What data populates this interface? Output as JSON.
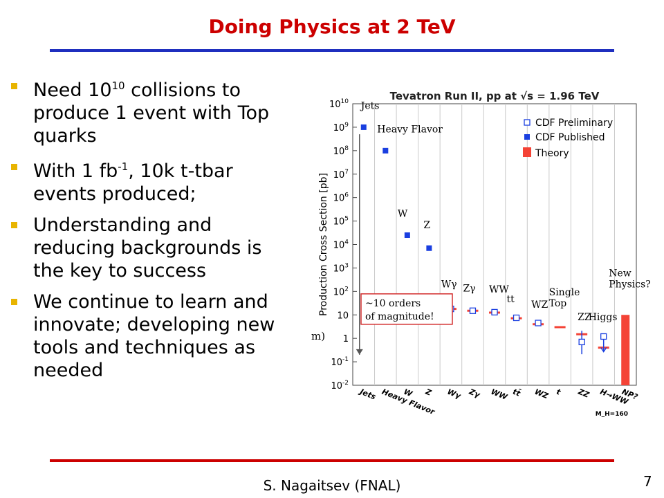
{
  "slide": {
    "title": "Doing Physics at 2 TeV",
    "footer": "S. Nagaitsev (FNAL)",
    "page_number": "7",
    "colors": {
      "title": "#cc0000",
      "rule_blue": "#1f2fbf",
      "rule_red": "#cc0000",
      "bullet": "#e8b400"
    },
    "bullets": [
      {
        "pre": "Need 10",
        "sup": "10",
        "post": " collisions to produce 1 event with Top quarks"
      },
      {
        "pre": "With 1 fb",
        "sup": "-1",
        "post": ", 10k t-tbar events produced;"
      },
      {
        "pre": "Understanding and reducing backgrounds is the key to success",
        "sup": "",
        "post": ""
      },
      {
        "pre": "We continue to learn and innovate;  developing new tools and techniques as needed",
        "sup": "",
        "post": ""
      }
    ]
  },
  "chart_data": {
    "type": "scatter",
    "title": "Tevatron Run II, pp at √s = 1.96 TeV",
    "ylabel": "Production Cross Section [pb]",
    "y_scale": "log",
    "ylim": [
      0.01,
      10000000000
    ],
    "y_tick_labels": [
      "10^-2",
      "10^-1",
      "1",
      "10",
      "10^2",
      "10^3",
      "10^4",
      "10^5",
      "10^6",
      "10^7",
      "10^8",
      "10^9",
      "10^10"
    ],
    "categories": [
      "Jets",
      "Heavy Flavor",
      "W",
      "Z",
      "Wγ",
      "Zγ",
      "WW",
      "tt̄",
      "WZ",
      "t",
      "ZZ",
      "H→WW",
      "NP?"
    ],
    "x_note": "M_H=160",
    "legend": [
      "CDF Preliminary",
      "CDF Published",
      "Theory"
    ],
    "legend_position": "top-right",
    "colors": {
      "published": "#1a3fe0",
      "preliminary": "#1a3fe0",
      "theory": "#f44336",
      "annotation": "#d32f2f"
    },
    "series": [
      {
        "name": "CDF Published",
        "values": [
          1000000000,
          100000000,
          25000,
          7000,
          null,
          null,
          null,
          null,
          null,
          null,
          null,
          null,
          null
        ]
      },
      {
        "name": "CDF Preliminary",
        "values": [
          null,
          null,
          null,
          null,
          18,
          15,
          13,
          7.5,
          4.5,
          null,
          0.7,
          1.2,
          null
        ]
      },
      {
        "name": "Theory",
        "values": [
          null,
          null,
          null,
          null,
          18,
          15,
          12.5,
          7.2,
          4,
          3,
          1.5,
          0.4,
          10
        ]
      }
    ],
    "point_labels": [
      "Jets",
      "Heavy Flavor",
      "W",
      "Z",
      "Wγ",
      "Zγ",
      "WW",
      "tt",
      "WZ",
      "Single Top",
      "ZZ",
      "Higgs",
      "New Physics?"
    ],
    "annotation": "~10 orders of magnitude!",
    "cut_text": "m)"
  }
}
